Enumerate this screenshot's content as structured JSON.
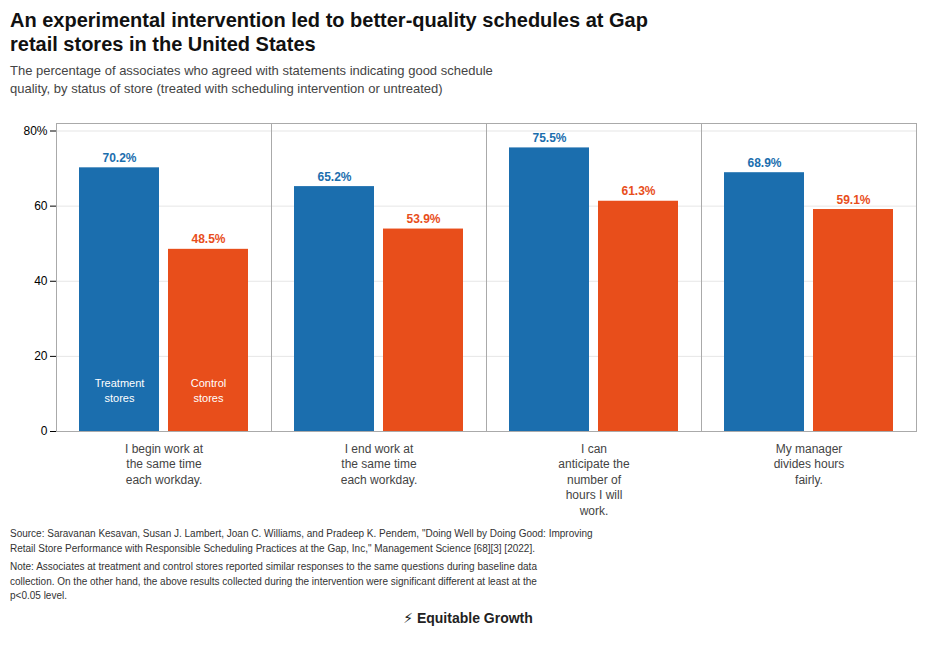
{
  "chart_data": {
    "type": "bar",
    "title": "An experimental intervention led to better-quality schedules at Gap\nretail stores in the United States",
    "subtitle": "The percentage of associates who agreed with statements indicating good schedule\nquality, by status of store (treated with scheduling intervention or untreated)",
    "categories": [
      "I begin work at\nthe same time\neach workday.",
      "I end work at\nthe same time\neach workday.",
      "I can\nanticipate the\nnumber of\nhours I will\nwork.",
      "My manager\ndivides hours\nfairly."
    ],
    "series": [
      {
        "name": "Treatment\nstores",
        "color": "#1B6EAE",
        "values": [
          70.2,
          65.2,
          75.5,
          68.9
        ],
        "value_labels": [
          "70.2%",
          "65.2%",
          "75.5%",
          "68.9%"
        ]
      },
      {
        "name": "Control\nstores",
        "color": "#E84E1B",
        "values": [
          48.5,
          53.9,
          61.3,
          59.1
        ],
        "value_labels": [
          "48.5%",
          "53.9%",
          "61.3%",
          "59.1%"
        ]
      }
    ],
    "ylim": [
      0,
      82
    ],
    "yticks": [
      0,
      20,
      40,
      60,
      {
        "value": 80,
        "label": "80%"
      }
    ],
    "grid": true,
    "data_labels": true,
    "source": "Source: Saravanan Kesavan, Susan J. Lambert, Joan C. Williams, and Pradeep K. Pendem, \"Doing Well by Doing Good: Improving\nRetail Store Performance with Responsible Scheduling Practices at the Gap, Inc,\" Management Science [68][3] [2022].",
    "note": "Note: Associates at treatment and control stores reported similar responses to the same questions during baseline data\ncollection. On the other hand, the above results collected during the intervention were significant different at least at the\np<0.05 level.",
    "annotations": [
      "⚡ Equitable Growth"
    ]
  }
}
